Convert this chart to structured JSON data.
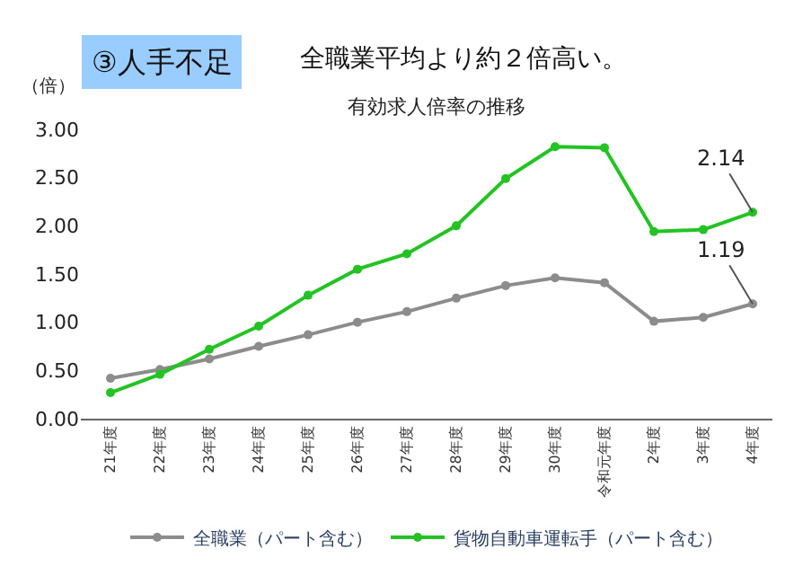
{
  "chart_data": {
    "type": "line",
    "title": "有効求人倍率の推移",
    "ylabel": "（倍）",
    "annotations": [
      "③人手不足",
      "全職業平均より約２倍高い。"
    ],
    "categories": [
      "21年度",
      "22年度",
      "23年度",
      "24年度",
      "25年度",
      "26年度",
      "27年度",
      "28年度",
      "29年度",
      "30年度",
      "令和元年度",
      "2年度",
      "3年度",
      "4年度"
    ],
    "series": [
      {
        "name": "全職業（パート含む）",
        "color": "#8c8c8c",
        "values": [
          0.42,
          0.51,
          0.62,
          0.75,
          0.87,
          1.0,
          1.11,
          1.25,
          1.38,
          1.46,
          1.41,
          1.01,
          1.05,
          1.19
        ],
        "value_labels": [
          null,
          null,
          null,
          null,
          null,
          null,
          null,
          null,
          null,
          null,
          null,
          null,
          null,
          "1.19"
        ]
      },
      {
        "name": "貨物自動車運転手（パート含む）",
        "color": "#22c322",
        "values": [
          0.27,
          0.46,
          0.72,
          0.96,
          1.28,
          1.55,
          1.71,
          2.0,
          2.49,
          2.82,
          2.81,
          1.94,
          1.96,
          2.14
        ],
        "value_labels": [
          null,
          null,
          null,
          null,
          null,
          null,
          null,
          null,
          null,
          null,
          null,
          null,
          null,
          "2.14"
        ]
      }
    ],
    "ylim": [
      0,
      3
    ],
    "yticks": [
      {
        "value": 0,
        "label": "0.00"
      },
      {
        "value": 0.5,
        "label": "0.50"
      },
      {
        "value": 1,
        "label": "1.00"
      },
      {
        "value": 1.5,
        "label": "1.50"
      },
      {
        "value": 2,
        "label": "2.00"
      },
      {
        "value": 2.5,
        "label": "2.50"
      },
      {
        "value": 3,
        "label": "3.00"
      }
    ],
    "grid": false,
    "legend": "bottom",
    "marker": "circle",
    "line_style": "solid"
  }
}
